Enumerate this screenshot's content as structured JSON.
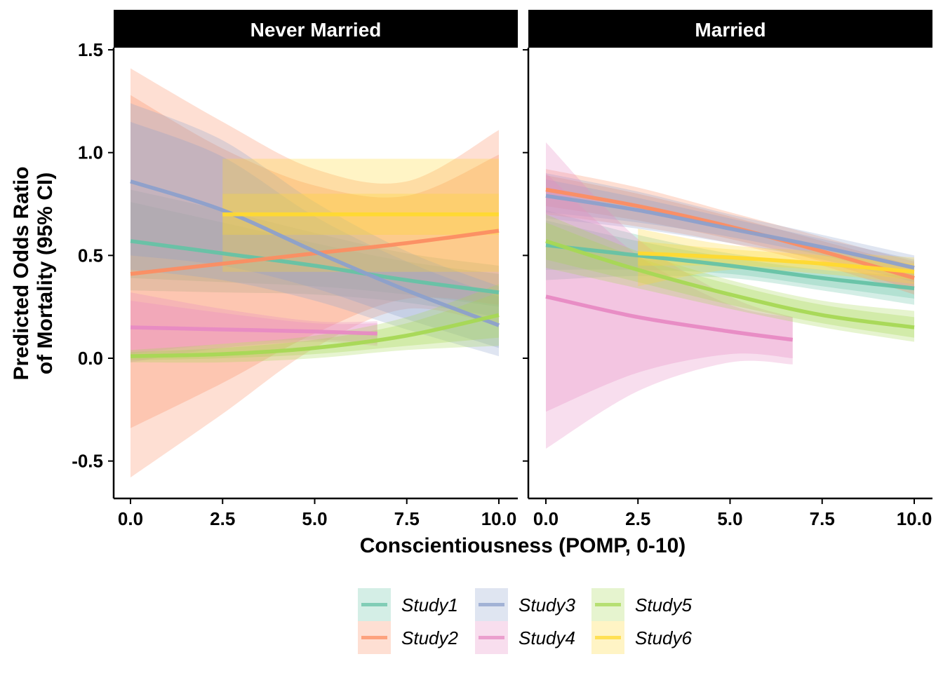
{
  "chart_data": {
    "type": "line",
    "xlabel": "Conscientiousness (POMP, 0-10)",
    "ylabel_lines": [
      "Predicted Odds Ratio",
      "of Mortality (95% CI)"
    ],
    "xlim": [
      -0.5,
      10.5
    ],
    "ylim": [
      -0.68,
      1.52
    ],
    "x_ticks": [
      0,
      2.5,
      5,
      7.5,
      10
    ],
    "x_tick_labels": [
      "0.0",
      "2.5",
      "5.0",
      "7.5",
      "10.0"
    ],
    "y_ticks": [
      -0.5,
      0,
      0.5,
      1,
      1.5
    ],
    "y_tick_labels": [
      "-0.5",
      "0.0",
      "0.5",
      "1.0",
      "1.5"
    ],
    "grid": false,
    "legend_position": "bottom",
    "series_info": [
      {
        "name": "Study1",
        "color": "#66C2A5"
      },
      {
        "name": "Study2",
        "color": "#FC8D62"
      },
      {
        "name": "Study3",
        "color": "#8DA0CB"
      },
      {
        "name": "Study4",
        "color": "#E78AC3"
      },
      {
        "name": "Study5",
        "color": "#A6D854"
      },
      {
        "name": "Study6",
        "color": "#FFD92F"
      }
    ],
    "panels": [
      {
        "title": "Never Married",
        "series": [
          {
            "name": "Study1",
            "x": [
              0,
              2.5,
              5,
              7.5,
              10
            ],
            "y": [
              0.57,
              0.51,
              0.45,
              0.38,
              0.32
            ],
            "inner_lower": [
              0.39,
              0.37,
              0.35,
              0.31,
              0.25
            ],
            "inner_upper": [
              0.76,
              0.66,
              0.56,
              0.47,
              0.41
            ],
            "outer_lower": [
              0.33,
              0.32,
              0.31,
              0.27,
              0.2
            ],
            "outer_upper": [
              0.82,
              0.72,
              0.61,
              0.51,
              0.45
            ]
          },
          {
            "name": "Study2",
            "x": [
              0,
              2.5,
              5,
              7.5,
              10
            ],
            "y": [
              0.41,
              0.46,
              0.51,
              0.56,
              0.62
            ],
            "inner_lower": [
              -0.34,
              -0.12,
              0.12,
              0.29,
              0.26
            ],
            "inner_upper": [
              1.28,
              1.02,
              0.84,
              0.79,
              0.99
            ],
            "outer_lower": [
              -0.58,
              -0.27,
              0.05,
              0.24,
              0.16
            ],
            "outer_upper": [
              1.41,
              1.15,
              0.92,
              0.86,
              1.11
            ]
          },
          {
            "name": "Study3",
            "x": [
              0,
              2.5,
              5,
              7.5,
              10
            ],
            "y": [
              0.86,
              0.72,
              0.52,
              0.33,
              0.16
            ],
            "inner_lower": [
              0.5,
              0.45,
              0.34,
              0.19,
              0.05
            ],
            "inner_upper": [
              1.15,
              0.98,
              0.69,
              0.47,
              0.3
            ],
            "outer_lower": [
              0.43,
              0.38,
              0.28,
              0.14,
              0.01
            ],
            "outer_upper": [
              1.24,
              1.06,
              0.76,
              0.52,
              0.35
            ]
          },
          {
            "name": "Study4",
            "x": [
              0,
              2.5,
              5,
              6.7
            ],
            "y": [
              0.15,
              0.14,
              0.13,
              0.12
            ],
            "inner_lower": [
              0.02,
              0.07,
              0.09,
              0.07
            ],
            "inner_upper": [
              0.28,
              0.22,
              0.17,
              0.17
            ],
            "outer_lower": [
              -0.02,
              0.05,
              0.08,
              0.06
            ],
            "outer_upper": [
              0.32,
              0.24,
              0.18,
              0.18
            ]
          },
          {
            "name": "Study5",
            "x": [
              0,
              2.5,
              5,
              7.5,
              10
            ],
            "y": [
              0.01,
              0.02,
              0.05,
              0.11,
              0.21
            ],
            "inner_lower": [
              -0.01,
              0.0,
              0.02,
              0.06,
              0.1
            ],
            "inner_upper": [
              0.03,
              0.05,
              0.09,
              0.17,
              0.32
            ],
            "outer_lower": [
              -0.02,
              -0.02,
              0.0,
              0.04,
              0.06
            ],
            "outer_upper": [
              0.04,
              0.07,
              0.11,
              0.2,
              0.36
            ]
          },
          {
            "name": "Study6",
            "x": [
              2.5,
              5,
              7.5,
              10
            ],
            "y": [
              0.7,
              0.7,
              0.7,
              0.7
            ],
            "inner_lower": [
              0.6,
              0.6,
              0.6,
              0.6
            ],
            "inner_upper": [
              0.8,
              0.8,
              0.8,
              0.8
            ],
            "outer_lower": [
              0.42,
              0.42,
              0.42,
              0.42
            ],
            "outer_upper": [
              0.97,
              0.97,
              0.97,
              0.97
            ]
          }
        ]
      },
      {
        "title": "Married",
        "series": [
          {
            "name": "Study1",
            "x": [
              0,
              2.5,
              5,
              7.5,
              10
            ],
            "y": [
              0.55,
              0.5,
              0.45,
              0.39,
              0.34
            ],
            "inner_lower": [
              0.43,
              0.43,
              0.41,
              0.35,
              0.29
            ],
            "inner_upper": [
              0.67,
              0.57,
              0.49,
              0.43,
              0.4
            ],
            "outer_lower": [
              0.38,
              0.4,
              0.39,
              0.33,
              0.26
            ],
            "outer_upper": [
              0.72,
              0.6,
              0.51,
              0.46,
              0.43
            ]
          },
          {
            "name": "Study2",
            "x": [
              0,
              2.5,
              5,
              7.5,
              10
            ],
            "y": [
              0.82,
              0.74,
              0.64,
              0.52,
              0.39
            ],
            "inner_lower": [
              0.74,
              0.67,
              0.58,
              0.47,
              0.33
            ],
            "inner_upper": [
              0.89,
              0.8,
              0.69,
              0.57,
              0.45
            ],
            "outer_lower": [
              0.7,
              0.64,
              0.56,
              0.45,
              0.31
            ],
            "outer_upper": [
              0.92,
              0.83,
              0.71,
              0.59,
              0.47
            ]
          },
          {
            "name": "Study3",
            "x": [
              0,
              2.5,
              5,
              7.5,
              10
            ],
            "y": [
              0.79,
              0.72,
              0.63,
              0.54,
              0.44
            ],
            "inner_lower": [
              0.71,
              0.66,
              0.59,
              0.5,
              0.39
            ],
            "inner_upper": [
              0.87,
              0.78,
              0.68,
              0.58,
              0.48
            ],
            "outer_lower": [
              0.68,
              0.63,
              0.56,
              0.48,
              0.37
            ],
            "outer_upper": [
              0.9,
              0.81,
              0.7,
              0.6,
              0.5
            ]
          },
          {
            "name": "Study4",
            "x": [
              0,
              2.5,
              5,
              6.7
            ],
            "y": [
              0.3,
              0.2,
              0.13,
              0.09
            ],
            "inner_lower": [
              -0.26,
              -0.07,
              0.02,
              0.0
            ],
            "inner_upper": [
              0.9,
              0.5,
              0.26,
              0.2
            ],
            "outer_lower": [
              -0.44,
              -0.16,
              -0.02,
              -0.03
            ],
            "outer_upper": [
              1.05,
              0.58,
              0.3,
              0.2
            ]
          },
          {
            "name": "Study5",
            "x": [
              0,
              2.5,
              5,
              7.5,
              10
            ],
            "y": [
              0.57,
              0.43,
              0.31,
              0.21,
              0.15
            ],
            "inner_lower": [
              0.48,
              0.37,
              0.26,
              0.17,
              0.1
            ],
            "inner_upper": [
              0.66,
              0.49,
              0.36,
              0.26,
              0.2
            ],
            "outer_lower": [
              0.44,
              0.34,
              0.24,
              0.15,
              0.08
            ],
            "outer_upper": [
              0.7,
              0.52,
              0.38,
              0.28,
              0.23
            ]
          },
          {
            "name": "Study6",
            "x": [
              2.5,
              5,
              7.5,
              10
            ],
            "y": [
              0.51,
              0.49,
              0.46,
              0.42
            ],
            "inner_lower": [
              0.45,
              0.45,
              0.43,
              0.38
            ],
            "inner_upper": [
              0.57,
              0.53,
              0.5,
              0.46
            ],
            "outer_lower": [
              0.35,
              0.43,
              0.41,
              0.36
            ],
            "outer_upper": [
              0.63,
              0.55,
              0.52,
              0.49
            ]
          }
        ]
      }
    ]
  }
}
